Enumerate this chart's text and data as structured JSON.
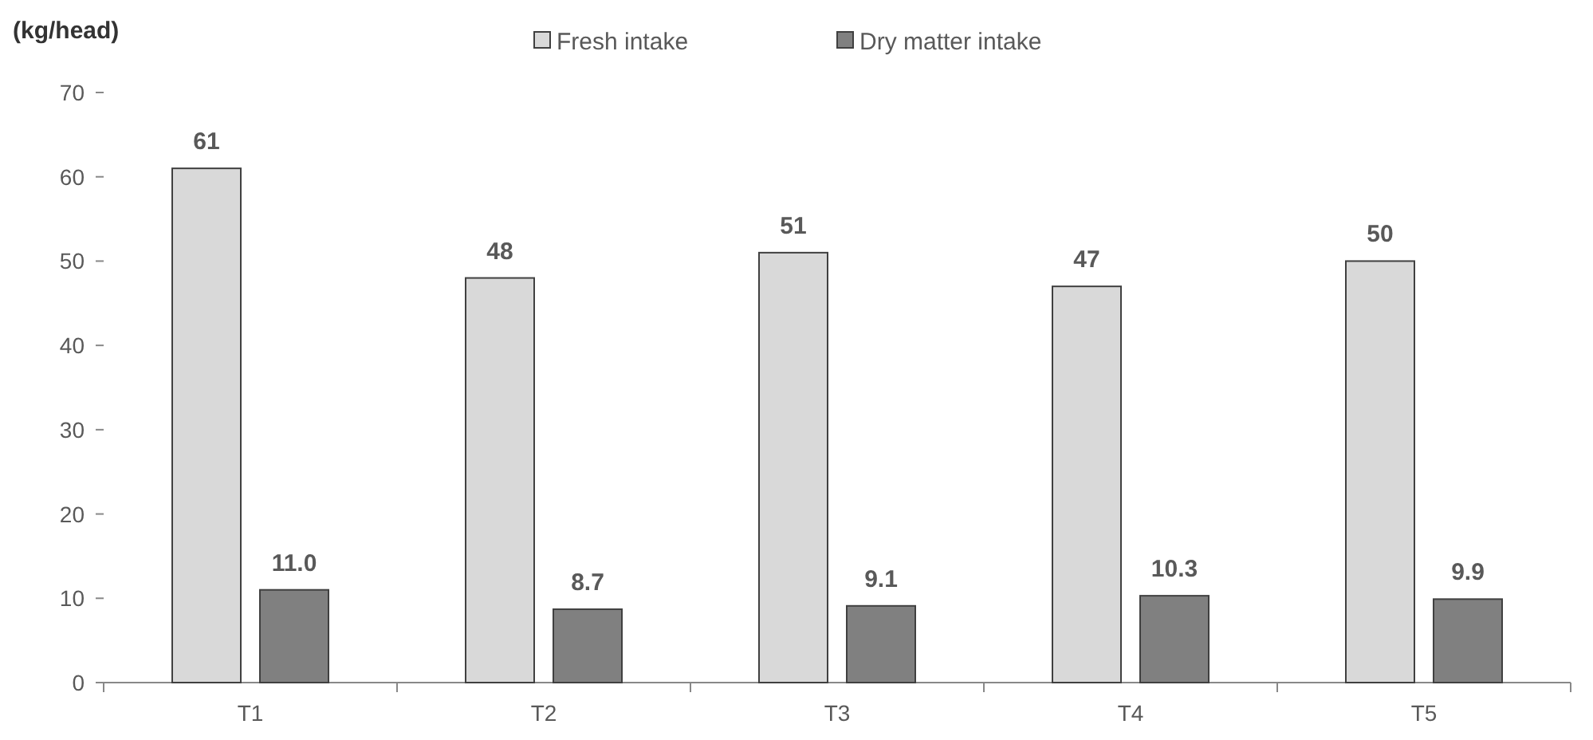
{
  "chart_data": {
    "type": "bar",
    "ylabel": "(kg/head)",
    "categories": [
      "T1",
      "T2",
      "T3",
      "T4",
      "T5"
    ],
    "series": [
      {
        "name": "Fresh intake",
        "color": "#d9d9d9",
        "values": [
          61,
          48,
          51,
          47,
          50
        ],
        "value_labels": [
          "61",
          "48",
          "51",
          "47",
          "50"
        ]
      },
      {
        "name": "Dry matter intake",
        "color": "#808080",
        "values": [
          11.0,
          8.7,
          9.1,
          10.3,
          9.9
        ],
        "value_labels": [
          "11.0",
          "8.7",
          "9.1",
          "10.3",
          "9.9"
        ]
      }
    ],
    "ylim": [
      0,
      70
    ],
    "yticks": [
      0,
      10,
      20,
      30,
      40,
      50,
      60,
      70
    ],
    "grid": false,
    "legend": "top"
  }
}
